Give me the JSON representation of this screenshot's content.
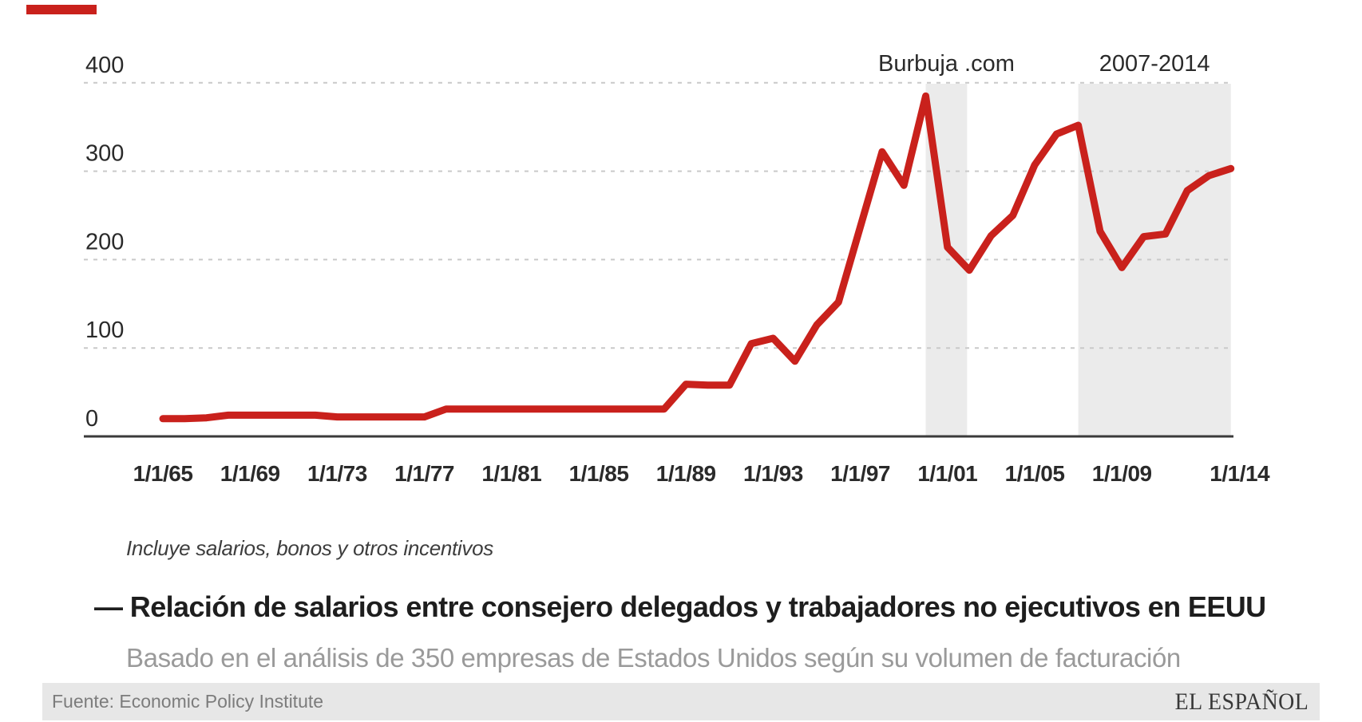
{
  "brand": {
    "logo_text": "EL ESPAÑOL",
    "accent_color": "#c9211c"
  },
  "note": "Incluye salarios, bonos y otros incentivos",
  "title": "— Relación de salarios entre consejero delegados y trabajadores no ejecutivos en EEUU",
  "subtitle": "Basado en el análisis de 350 empresas de Estados Unidos según su volumen de facturación",
  "source": "Fuente: Economic Policy Institute",
  "chart_data": {
    "type": "line",
    "title": "",
    "xlabel": "",
    "ylabel": "",
    "xlim": [
      1964.9,
      2014.1
    ],
    "ylim": [
      0,
      400
    ],
    "grid": "horizontal-dashed",
    "legend_position": "none",
    "line_color": "#c9211c",
    "gridline_color": "#c9c9c9",
    "axis_color": "#3a3a3a",
    "band_color": "#ebebeb",
    "y_ticks": [
      0,
      100,
      200,
      300,
      400
    ],
    "y_tick_labels": [
      "0",
      "100",
      "200",
      "300",
      "400"
    ],
    "x_tick_years": [
      1965,
      1969,
      1973,
      1977,
      1981,
      1985,
      1989,
      1993,
      1997,
      2001,
      2005,
      2009,
      2014
    ],
    "x_tick_labels": [
      "1/1/65",
      "1/1/69",
      "1/1/73",
      "1/1/77",
      "1/1/81",
      "1/1/85",
      "1/1/89",
      "1/1/93",
      "1/1/97",
      "1/1/01",
      "1/1/05",
      "1/1/09",
      "1/1/14"
    ],
    "shaded_regions": [
      {
        "label": "Burbuja .com",
        "from_year": 2000,
        "to_year": 2001.9
      },
      {
        "label": "2007-2014",
        "from_year": 2007,
        "to_year": 2014
      }
    ],
    "series": [
      {
        "name": "Relación salario consejero delegado / trabajador",
        "x": [
          1965,
          1966,
          1967,
          1968,
          1969,
          1970,
          1971,
          1972,
          1973,
          1974,
          1975,
          1976,
          1977,
          1978,
          1979,
          1980,
          1981,
          1982,
          1983,
          1984,
          1985,
          1986,
          1987,
          1988,
          1989,
          1990,
          1991,
          1992,
          1993,
          1994,
          1995,
          1996,
          1997,
          1998,
          1999,
          2000,
          2001,
          2002,
          2003,
          2004,
          2005,
          2006,
          2007,
          2008,
          2009,
          2010,
          2011,
          2012,
          2013,
          2014
        ],
        "values": [
          20,
          20,
          21,
          24,
          24,
          24,
          24,
          24,
          22,
          22,
          22,
          22,
          22,
          31,
          31,
          31,
          31,
          31,
          31,
          31,
          31,
          31,
          31,
          31,
          59,
          58,
          58,
          105,
          111,
          85,
          126,
          152,
          237,
          322,
          284,
          385,
          214,
          188,
          227,
          250,
          307,
          342,
          352,
          232,
          191,
          226,
          229,
          278,
          295,
          303
        ]
      }
    ]
  }
}
